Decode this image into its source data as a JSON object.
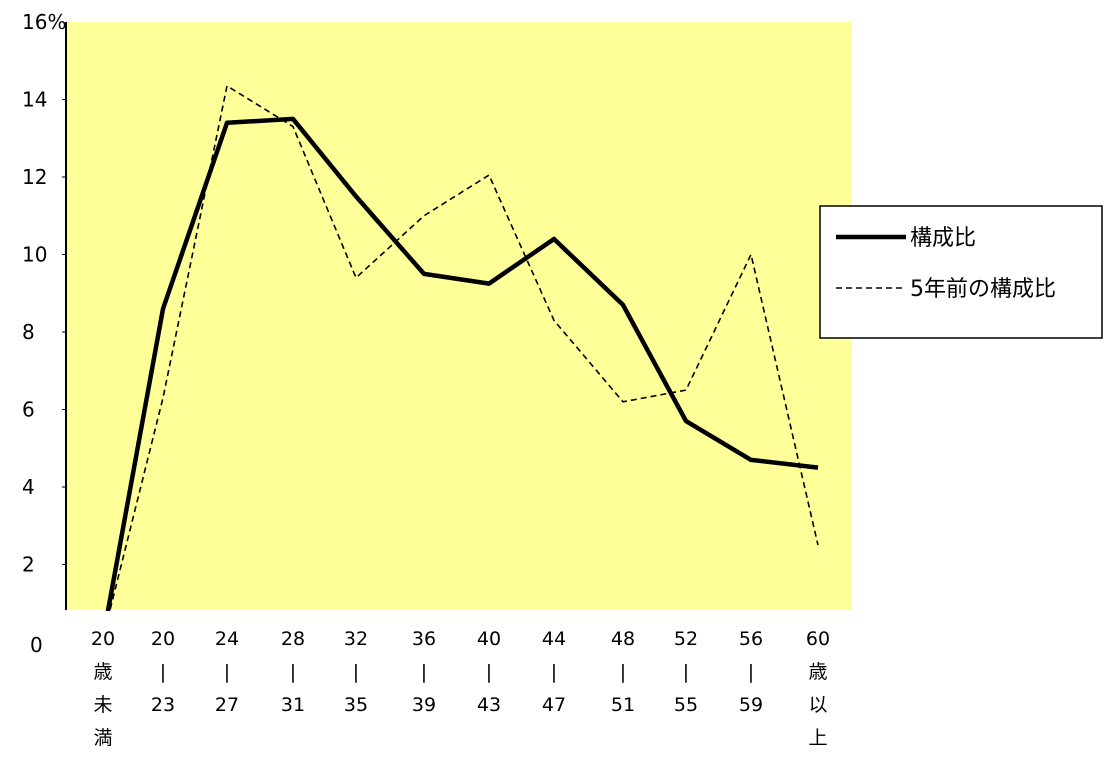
{
  "chart_data": {
    "type": "line",
    "yunit": "%",
    "ylim": [
      0,
      16
    ],
    "yticks": [
      0,
      2,
      4,
      6,
      8,
      10,
      12,
      14,
      16
    ],
    "grid": false,
    "legend_position": "right",
    "background_color": "#FFFF99",
    "categories": [
      [
        "20",
        "歳",
        "未",
        "満"
      ],
      [
        "20",
        "|",
        "23"
      ],
      [
        "24",
        "|",
        "27"
      ],
      [
        "28",
        "|",
        "31"
      ],
      [
        "32",
        "|",
        "35"
      ],
      [
        "36",
        "|",
        "39"
      ],
      [
        "40",
        "|",
        "43"
      ],
      [
        "44",
        "|",
        "47"
      ],
      [
        "48",
        "|",
        "51"
      ],
      [
        "52",
        "|",
        "55"
      ],
      [
        "56",
        "|",
        "59"
      ],
      [
        "60",
        "歳",
        "以",
        "上"
      ]
    ],
    "series": [
      {
        "name": "構成比",
        "style": "solid",
        "color": "#000000",
        "values": [
          0.1,
          8.6,
          13.4,
          13.5,
          11.5,
          9.5,
          9.25,
          10.4,
          8.7,
          5.7,
          4.7,
          4.5
        ]
      },
      {
        "name": "5年前の構成比",
        "style": "dashed",
        "color": "#000000",
        "values": [
          0.1,
          6.3,
          14.35,
          13.3,
          9.4,
          11.0,
          12.05,
          8.3,
          6.2,
          6.5,
          10.0,
          2.5
        ]
      }
    ]
  }
}
